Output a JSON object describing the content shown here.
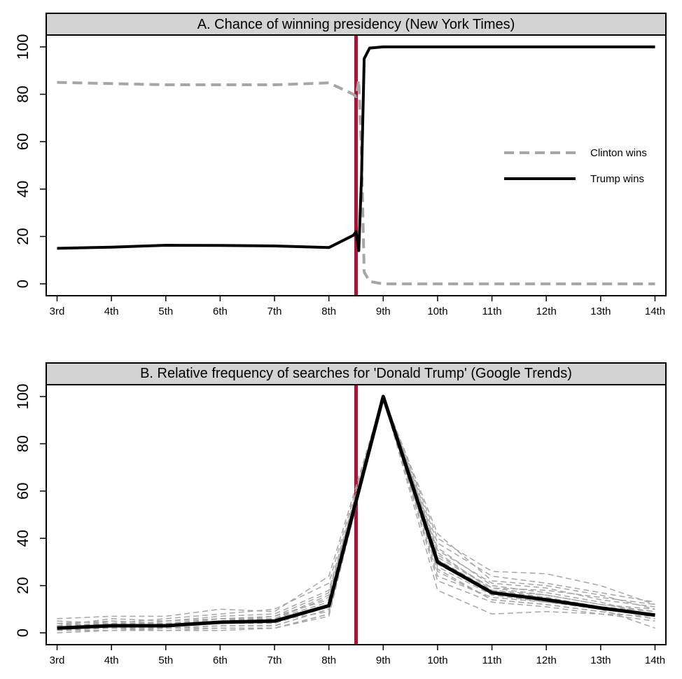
{
  "chart_data": [
    {
      "type": "line",
      "title": "A. Chance of winning presidency (New York Times)",
      "x_categories": [
        "3rd",
        "4th",
        "5th",
        "6th",
        "7th",
        "8th",
        "9th",
        "10th",
        "11th",
        "12th",
        "13th",
        "14th"
      ],
      "yticks": [
        0,
        20,
        40,
        60,
        80,
        100
      ],
      "ylim": [
        -5,
        105
      ],
      "xlim": [
        0.8,
        12.2
      ],
      "reference_line": {
        "x": 6.5,
        "color": "#a0173a"
      },
      "legend": {
        "position": "right",
        "entries": [
          "Clinton wins",
          "Trump wins"
        ]
      },
      "series": [
        {
          "name": "Clinton wins",
          "color": "#a6a6a6",
          "style": "dashed",
          "points": [
            [
              1,
              85
            ],
            [
              2,
              84.5
            ],
            [
              3,
              84
            ],
            [
              4,
              84
            ],
            [
              5,
              84
            ],
            [
              6,
              84.8
            ],
            [
              6.45,
              80
            ],
            [
              6.5,
              79
            ],
            [
              6.55,
              86
            ],
            [
              6.6,
              55
            ],
            [
              6.65,
              5
            ],
            [
              6.75,
              1
            ],
            [
              7,
              0
            ],
            [
              8,
              0
            ],
            [
              9,
              0
            ],
            [
              10,
              0
            ],
            [
              11,
              0
            ],
            [
              12,
              0
            ]
          ]
        },
        {
          "name": "Trump wins",
          "color": "#000000",
          "style": "solid",
          "points": [
            [
              1,
              15
            ],
            [
              2,
              15.5
            ],
            [
              3,
              16.3
            ],
            [
              4,
              16.2
            ],
            [
              5,
              16
            ],
            [
              6,
              15.3
            ],
            [
              6.45,
              20.5
            ],
            [
              6.5,
              22
            ],
            [
              6.55,
              14
            ],
            [
              6.6,
              45
            ],
            [
              6.65,
              95
            ],
            [
              6.75,
              99.5
            ],
            [
              7,
              100
            ],
            [
              8,
              100
            ],
            [
              9,
              100
            ],
            [
              10,
              100
            ],
            [
              11,
              100
            ],
            [
              12,
              100
            ]
          ]
        }
      ]
    },
    {
      "type": "line",
      "title": "B. Relative frequency of searches for 'Donald Trump' (Google Trends)",
      "x_categories": [
        "3rd",
        "4th",
        "5th",
        "6th",
        "7th",
        "8th",
        "9th",
        "10th",
        "11th",
        "12th",
        "13th",
        "14th"
      ],
      "yticks": [
        0,
        20,
        40,
        60,
        80,
        100
      ],
      "ylim": [
        -5,
        105
      ],
      "xlim": [
        0.8,
        12.2
      ],
      "reference_line": {
        "x": 6.5,
        "color": "#a0173a"
      },
      "main_series": {
        "color": "#000000",
        "style": "solid",
        "values": [
          2,
          3,
          3,
          4.5,
          5,
          11.5,
          100,
          30,
          17,
          14,
          10.5,
          7.5
        ]
      },
      "background_series_style": {
        "color": "#a6a6a6",
        "style": "dashed"
      },
      "background_series": [
        [
          4,
          5,
          4,
          6,
          6,
          15,
          100,
          40,
          26,
          25,
          20,
          12
        ],
        [
          6,
          7,
          7,
          10,
          9,
          24,
          100,
          38,
          24,
          21,
          17,
          13
        ],
        [
          1,
          1,
          2,
          2,
          2,
          8,
          100,
          18,
          8,
          9,
          8,
          7
        ],
        [
          3,
          4,
          4,
          5,
          6,
          13,
          100,
          33,
          19,
          16,
          12,
          9
        ],
        [
          2,
          2,
          2,
          3,
          3,
          10,
          100,
          26,
          14,
          12,
          9,
          6
        ],
        [
          4,
          3,
          5,
          7,
          8,
          18,
          100,
          35,
          21,
          19,
          14,
          11
        ],
        [
          1,
          2,
          1,
          2,
          2,
          8,
          100,
          22,
          13,
          11,
          8,
          5
        ],
        [
          3,
          6,
          5,
          6,
          7,
          14,
          100,
          31,
          18,
          15,
          11,
          8
        ],
        [
          2,
          3,
          3,
          4,
          4,
          11,
          100,
          28,
          16,
          13,
          10,
          8
        ],
        [
          5,
          4,
          6,
          8,
          10,
          21,
          100,
          42,
          22,
          20,
          16,
          10
        ],
        [
          0,
          1,
          1,
          1,
          2,
          7,
          100,
          24,
          15,
          13,
          11,
          9
        ],
        [
          3,
          4,
          3,
          4,
          5,
          12,
          100,
          29,
          17,
          14,
          10,
          2
        ],
        [
          2,
          5,
          4,
          5,
          6,
          16,
          100,
          36,
          20,
          17,
          13,
          7
        ],
        [
          4,
          2,
          3,
          6,
          5,
          9,
          100,
          27,
          14,
          12,
          9,
          6
        ],
        [
          1,
          3,
          2,
          3,
          3,
          10,
          100,
          32,
          19,
          18,
          15,
          12
        ],
        [
          3,
          2,
          4,
          5,
          7,
          17,
          100,
          34,
          18,
          16,
          12,
          10
        ]
      ]
    }
  ]
}
